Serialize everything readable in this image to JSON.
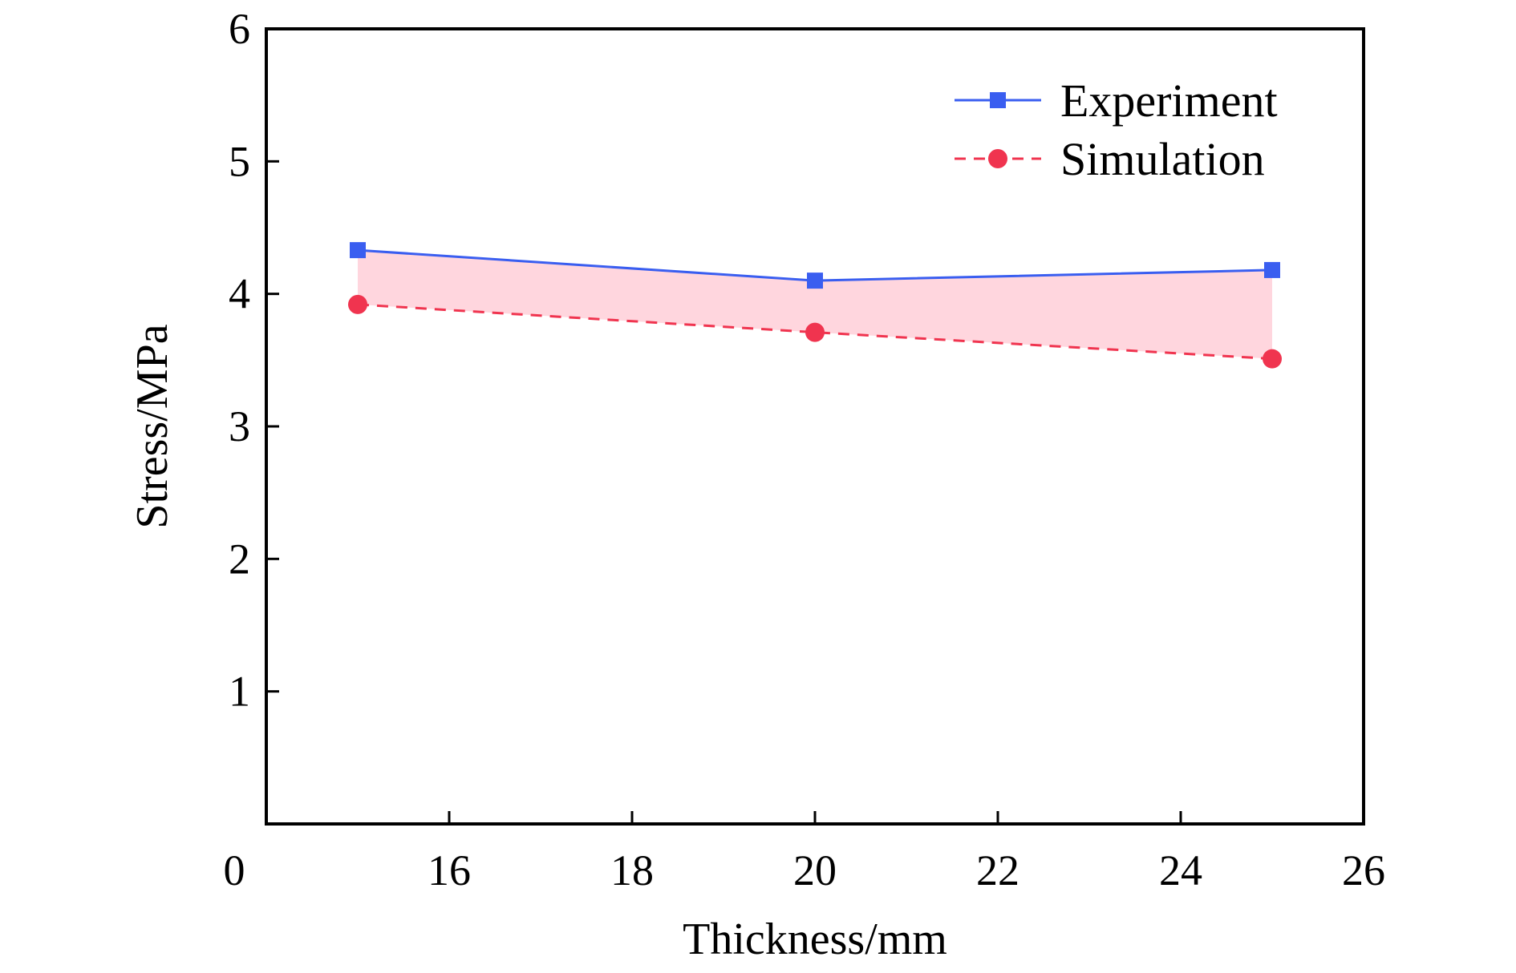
{
  "chart_data": {
    "type": "line",
    "xlabel": "Thickness/mm",
    "ylabel": "Stress/MPa",
    "xlim": [
      14,
      26
    ],
    "ylim": [
      0,
      6
    ],
    "x_ticks": [
      16,
      18,
      20,
      22,
      24,
      26
    ],
    "y_ticks": [
      1,
      2,
      3,
      4,
      5,
      6
    ],
    "origin_label": "0",
    "grid": false,
    "legend_position": "top-right",
    "x": [
      15,
      20,
      25
    ],
    "series": [
      {
        "name": "Experiment",
        "values": [
          4.33,
          4.1,
          4.18
        ],
        "color": "#3a5ef0",
        "line_style": "solid",
        "marker": "square"
      },
      {
        "name": "Simulation",
        "values": [
          3.92,
          3.71,
          3.51
        ],
        "color": "#f0344f",
        "line_style": "dashed",
        "marker": "circle"
      }
    ],
    "fill_between_color": "#ffd6de"
  }
}
